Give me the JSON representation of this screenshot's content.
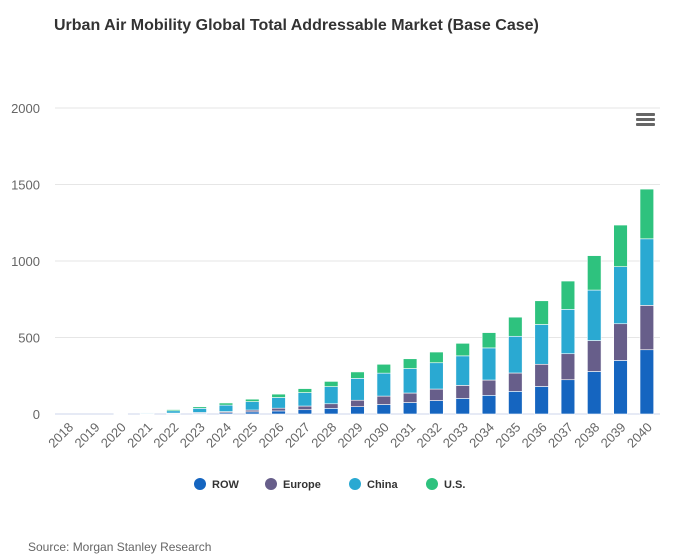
{
  "chart_data": {
    "type": "bar",
    "stacked": true,
    "title": "Urban Air Mobility Global Total Addressable Market (Base Case)",
    "xlabel": "",
    "ylabel": "",
    "ylim": [
      0,
      2000
    ],
    "yticks": [
      "0",
      "500",
      "1000",
      "1500",
      "2000"
    ],
    "grid": true,
    "legend_position": "bottom",
    "categories": [
      "2018",
      "2019",
      "2020",
      "2021",
      "2022",
      "2023",
      "2024",
      "2025",
      "2026",
      "2027",
      "2028",
      "2029",
      "2030",
      "2031",
      "2032",
      "2033",
      "2034",
      "2035",
      "2036",
      "2037",
      "2038",
      "2039",
      "2040"
    ],
    "series": [
      {
        "name": "ROW",
        "color": "#1565c0",
        "values": [
          0,
          0,
          0,
          1,
          3,
          5,
          8,
          14,
          20,
          28,
          37,
          48,
          62,
          75,
          88,
          102,
          122,
          148,
          180,
          224,
          278,
          350,
          420
        ]
      },
      {
        "name": "Europe",
        "color": "#675e8a",
        "values": [
          0,
          0,
          0,
          1,
          3,
          5,
          8,
          12,
          18,
          24,
          30,
          42,
          55,
          62,
          75,
          85,
          100,
          120,
          145,
          170,
          202,
          240,
          290
        ]
      },
      {
        "name": "China",
        "color": "#2aa9d2",
        "values": [
          0,
          0,
          1,
          5,
          15,
          27,
          42,
          55,
          70,
          88,
          112,
          143,
          150,
          160,
          172,
          193,
          210,
          240,
          260,
          290,
          330,
          373,
          435
        ]
      },
      {
        "name": "U.S.",
        "color": "#2ec27e",
        "values": [
          0,
          0,
          1,
          3,
          8,
          10,
          14,
          16,
          22,
          26,
          34,
          42,
          58,
          64,
          70,
          82,
          100,
          125,
          155,
          185,
          225,
          272,
          325
        ]
      }
    ]
  },
  "menu_icon": "hamburger-menu-icon",
  "source": "Source: Morgan Stanley Research"
}
